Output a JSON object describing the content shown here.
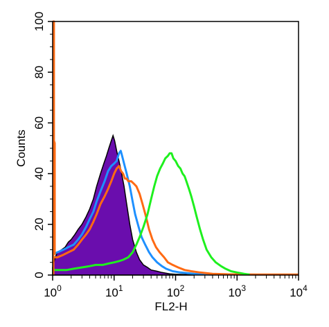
{
  "chart_data": {
    "type": "area",
    "xlabel": "FL2-H",
    "ylabel": "Counts",
    "xscale": "log",
    "xlim": [
      1,
      10000
    ],
    "ylim": [
      0,
      100
    ],
    "y_ticks": [
      0,
      20,
      40,
      60,
      80,
      100
    ],
    "x_ticks": [
      {
        "value": 1,
        "base": "10",
        "exp": "0"
      },
      {
        "value": 10,
        "base": "10",
        "exp": "1"
      },
      {
        "value": 100,
        "base": "10",
        "exp": "2"
      },
      {
        "value": 1000,
        "base": "10",
        "exp": "3"
      },
      {
        "value": 10000,
        "base": "10",
        "exp": "4"
      }
    ],
    "grid": false,
    "legend": "none",
    "series": [
      {
        "color": "#6a0dad",
        "filled": true,
        "points": [
          [
            1.0,
            0
          ],
          [
            1.0,
            3
          ],
          [
            1.1,
            7
          ],
          [
            1.2,
            9
          ],
          [
            1.4,
            10
          ],
          [
            1.6,
            11
          ],
          [
            1.8,
            13
          ],
          [
            2.0,
            14
          ],
          [
            2.3,
            16
          ],
          [
            2.6,
            18
          ],
          [
            3.0,
            20
          ],
          [
            3.5,
            23
          ],
          [
            4.0,
            26
          ],
          [
            4.6,
            30
          ],
          [
            5.2,
            35
          ],
          [
            6.0,
            40
          ],
          [
            6.8,
            44
          ],
          [
            7.5,
            47
          ],
          [
            8.2,
            50
          ],
          [
            9.0,
            53
          ],
          [
            9.6,
            55
          ],
          [
            10.2,
            53
          ],
          [
            11.0,
            49
          ],
          [
            12.0,
            45
          ],
          [
            13.0,
            41
          ],
          [
            14.5,
            35
          ],
          [
            16.0,
            28
          ],
          [
            18.0,
            20
          ],
          [
            20.0,
            14
          ],
          [
            23.0,
            9
          ],
          [
            26.0,
            6
          ],
          [
            30.0,
            4
          ],
          [
            35.0,
            3
          ],
          [
            40.0,
            2
          ],
          [
            50.0,
            1.5
          ],
          [
            60.0,
            1
          ],
          [
            80.0,
            0.5
          ],
          [
            100.0,
            0.3
          ],
          [
            150.0,
            0.2
          ],
          [
            200.0,
            0
          ]
        ]
      },
      {
        "color": "#1e90ff",
        "filled": false,
        "points": [
          [
            1.0,
            8
          ],
          [
            1.2,
            9
          ],
          [
            1.5,
            10
          ],
          [
            1.8,
            11
          ],
          [
            2.2,
            12
          ],
          [
            2.6,
            14
          ],
          [
            3.0,
            16
          ],
          [
            3.5,
            19
          ],
          [
            4.0,
            22
          ],
          [
            4.6,
            25
          ],
          [
            5.2,
            29
          ],
          [
            6.0,
            33
          ],
          [
            7.0,
            37
          ],
          [
            8.0,
            41
          ],
          [
            9.0,
            43
          ],
          [
            10.0,
            44
          ],
          [
            11.0,
            45
          ],
          [
            12.0,
            48
          ],
          [
            12.8,
            49
          ],
          [
            13.5,
            47
          ],
          [
            14.5,
            44
          ],
          [
            16.0,
            40
          ],
          [
            18.0,
            35
          ],
          [
            20.0,
            29
          ],
          [
            22.0,
            24
          ],
          [
            25.0,
            19
          ],
          [
            28.0,
            15
          ],
          [
            32.0,
            12
          ],
          [
            37.0,
            9
          ],
          [
            42.0,
            7
          ],
          [
            50.0,
            5
          ],
          [
            60.0,
            3.5
          ],
          [
            70.0,
            2.5
          ],
          [
            90.0,
            1.5
          ],
          [
            120.0,
            1
          ],
          [
            200.0,
            0.5
          ],
          [
            400.0,
            0.2
          ]
        ]
      },
      {
        "color": "#ff6a13",
        "filled": false,
        "points": [
          [
            1.0,
            7
          ],
          [
            1.2,
            7
          ],
          [
            1.5,
            8
          ],
          [
            1.8,
            9
          ],
          [
            2.2,
            10
          ],
          [
            2.6,
            12
          ],
          [
            3.0,
            14
          ],
          [
            3.5,
            16
          ],
          [
            4.0,
            18
          ],
          [
            4.6,
            21
          ],
          [
            5.2,
            24
          ],
          [
            6.0,
            28
          ],
          [
            7.0,
            31
          ],
          [
            8.0,
            34
          ],
          [
            9.0,
            37
          ],
          [
            10.0,
            40
          ],
          [
            11.0,
            42
          ],
          [
            12.0,
            43
          ],
          [
            13.0,
            41
          ],
          [
            14.0,
            40
          ],
          [
            15.0,
            38
          ],
          [
            16.0,
            38
          ],
          [
            17.0,
            37
          ],
          [
            19.0,
            37
          ],
          [
            21.0,
            36
          ],
          [
            23.0,
            35
          ],
          [
            26.0,
            32
          ],
          [
            29.0,
            28
          ],
          [
            33.0,
            23
          ],
          [
            37.0,
            18
          ],
          [
            42.0,
            14
          ],
          [
            48.0,
            11
          ],
          [
            55.0,
            9
          ],
          [
            65.0,
            7
          ],
          [
            75.0,
            5
          ],
          [
            90.0,
            4
          ],
          [
            110.0,
            3
          ],
          [
            140.0,
            2
          ],
          [
            180.0,
            1.5
          ],
          [
            250.0,
            1
          ],
          [
            400.0,
            0.5
          ],
          [
            700.0,
            0.3
          ],
          [
            2000.0,
            0.2
          ],
          [
            10000.0,
            0.2
          ]
        ]
      },
      {
        "color": "#1ef01e",
        "filled": false,
        "points": [
          [
            1.0,
            2
          ],
          [
            1.3,
            2
          ],
          [
            1.7,
            2
          ],
          [
            2.2,
            2.5
          ],
          [
            3.0,
            3
          ],
          [
            4.0,
            3.5
          ],
          [
            5.0,
            4
          ],
          [
            6.5,
            4
          ],
          [
            8.0,
            4.5
          ],
          [
            10.0,
            5
          ],
          [
            12.0,
            5.5
          ],
          [
            14.0,
            6
          ],
          [
            17.0,
            7
          ],
          [
            20.0,
            9
          ],
          [
            23.0,
            12
          ],
          [
            26.0,
            15
          ],
          [
            30.0,
            19
          ],
          [
            35.0,
            24
          ],
          [
            40.0,
            30
          ],
          [
            45.0,
            35
          ],
          [
            50.0,
            39
          ],
          [
            56.0,
            42
          ],
          [
            62.0,
            44
          ],
          [
            68.0,
            46
          ],
          [
            75.0,
            47
          ],
          [
            80.0,
            48
          ],
          [
            86.0,
            48
          ],
          [
            92.0,
            46
          ],
          [
            100.0,
            45
          ],
          [
            110.0,
            43
          ],
          [
            120.0,
            42
          ],
          [
            130.0,
            40
          ],
          [
            140.0,
            39
          ],
          [
            150.0,
            37
          ],
          [
            165.0,
            34
          ],
          [
            180.0,
            31
          ],
          [
            200.0,
            27
          ],
          [
            220.0,
            23
          ],
          [
            250.0,
            18
          ],
          [
            280.0,
            14
          ],
          [
            320.0,
            10
          ],
          [
            380.0,
            7
          ],
          [
            450.0,
            5
          ],
          [
            550.0,
            3.5
          ],
          [
            650.0,
            2.5
          ],
          [
            800.0,
            1.5
          ],
          [
            1000.0,
            1
          ],
          [
            1300.0,
            0.5
          ],
          [
            1600.0,
            0.2
          ]
        ]
      },
      {
        "color": "#ff6a13",
        "filled": false,
        "points": [
          [
            1.03,
            0
          ],
          [
            1.03,
            100
          ],
          [
            1.05,
            100
          ],
          [
            1.05,
            53
          ],
          [
            1.08,
            52
          ],
          [
            1.08,
            8
          ]
        ]
      }
    ]
  }
}
